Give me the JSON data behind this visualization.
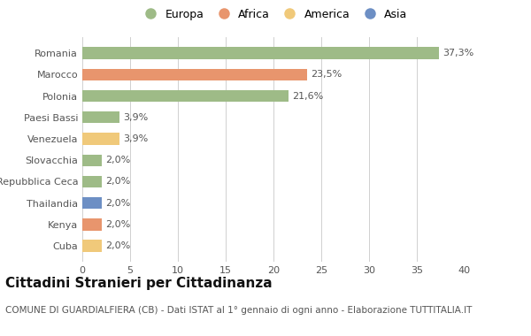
{
  "categories": [
    "Cuba",
    "Kenya",
    "Thailandia",
    "Repubblica Ceca",
    "Slovacchia",
    "Venezuela",
    "Paesi Bassi",
    "Polonia",
    "Marocco",
    "Romania"
  ],
  "values": [
    2.0,
    2.0,
    2.0,
    2.0,
    2.0,
    3.9,
    3.9,
    21.6,
    23.5,
    37.3
  ],
  "labels": [
    "2,0%",
    "2,0%",
    "2,0%",
    "2,0%",
    "2,0%",
    "3,9%",
    "3,9%",
    "21,6%",
    "23,5%",
    "37,3%"
  ],
  "colors": [
    "#f0c97a",
    "#e8956d",
    "#6d8fc4",
    "#9ebb87",
    "#9ebb87",
    "#f0c97a",
    "#9ebb87",
    "#9ebb87",
    "#e8956d",
    "#9ebb87"
  ],
  "legend_labels": [
    "Europa",
    "Africa",
    "America",
    "Asia"
  ],
  "legend_colors": [
    "#9ebb87",
    "#e8956d",
    "#f0c97a",
    "#6d8fc4"
  ],
  "title": "Cittadini Stranieri per Cittadinanza",
  "subtitle": "COMUNE DI GUARDIALFIERA (CB) - Dati ISTAT al 1° gennaio di ogni anno - Elaborazione TUTTITALIA.IT",
  "xlim": [
    0,
    40
  ],
  "xticks": [
    0,
    5,
    10,
    15,
    20,
    25,
    30,
    35,
    40
  ],
  "background_color": "#ffffff",
  "grid_color": "#d0d0d0",
  "bar_height": 0.55,
  "title_fontsize": 11,
  "subtitle_fontsize": 7.5,
  "label_fontsize": 8,
  "tick_fontsize": 8,
  "legend_fontsize": 9
}
